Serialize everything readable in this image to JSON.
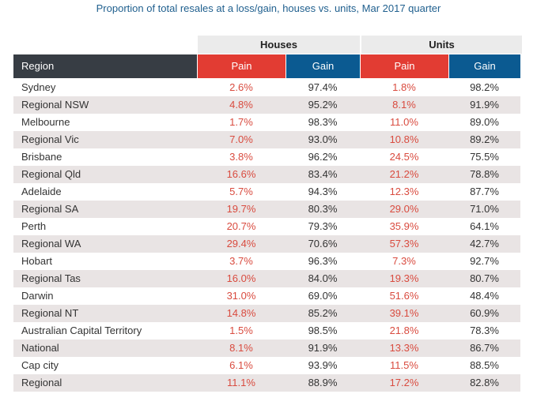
{
  "title": "Proportion of total resales at a loss/gain, houses vs. units, Mar 2017 quarter",
  "groups": {
    "houses": "Houses",
    "units": "Units"
  },
  "columns": {
    "region": "Region",
    "house_pain": "Pain",
    "house_gain": "Gain",
    "unit_pain": "Pain",
    "unit_gain": "Gain"
  },
  "colors": {
    "pain": "#e23c33",
    "gain": "#0b5a91",
    "region_header": "#373d44",
    "stripe": "#e9e4e4"
  },
  "chart_data": {
    "type": "table",
    "title": "Proportion of total resales at a loss/gain, houses vs. units, Mar 2017 quarter",
    "column_groups": [
      "Houses",
      "Units"
    ],
    "columns": [
      "Region",
      "Pain",
      "Gain",
      "Pain",
      "Gain"
    ],
    "rows": [
      [
        "Sydney",
        "2.6%",
        "97.4%",
        "1.8%",
        "98.2%"
      ],
      [
        "Regional NSW",
        "4.8%",
        "95.2%",
        "8.1%",
        "91.9%"
      ],
      [
        "Melbourne",
        "1.7%",
        "98.3%",
        "11.0%",
        "89.0%"
      ],
      [
        "Regional Vic",
        "7.0%",
        "93.0%",
        "10.8%",
        "89.2%"
      ],
      [
        "Brisbane",
        "3.8%",
        "96.2%",
        "24.5%",
        "75.5%"
      ],
      [
        "Regional Qld",
        "16.6%",
        "83.4%",
        "21.2%",
        "78.8%"
      ],
      [
        "Adelaide",
        "5.7%",
        "94.3%",
        "12.3%",
        "87.7%"
      ],
      [
        "Regional SA",
        "19.7%",
        "80.3%",
        "29.0%",
        "71.0%"
      ],
      [
        "Perth",
        "20.7%",
        "79.3%",
        "35.9%",
        "64.1%"
      ],
      [
        "Regional WA",
        "29.4%",
        "70.6%",
        "57.3%",
        "42.7%"
      ],
      [
        "Hobart",
        "3.7%",
        "96.3%",
        "7.3%",
        "92.7%"
      ],
      [
        "Regional Tas",
        "16.0%",
        "84.0%",
        "19.3%",
        "80.7%"
      ],
      [
        "Darwin",
        "31.0%",
        "69.0%",
        "51.6%",
        "48.4%"
      ],
      [
        "Regional NT",
        "14.8%",
        "85.2%",
        "39.1%",
        "60.9%"
      ],
      [
        "Australian Capital Territory",
        "1.5%",
        "98.5%",
        "21.8%",
        "78.3%"
      ],
      [
        "National",
        "8.1%",
        "91.9%",
        "13.3%",
        "86.7%"
      ],
      [
        "Cap city",
        "6.1%",
        "93.9%",
        "11.5%",
        "88.5%"
      ],
      [
        "Regional",
        "11.1%",
        "88.9%",
        "17.2%",
        "82.8%"
      ]
    ]
  }
}
